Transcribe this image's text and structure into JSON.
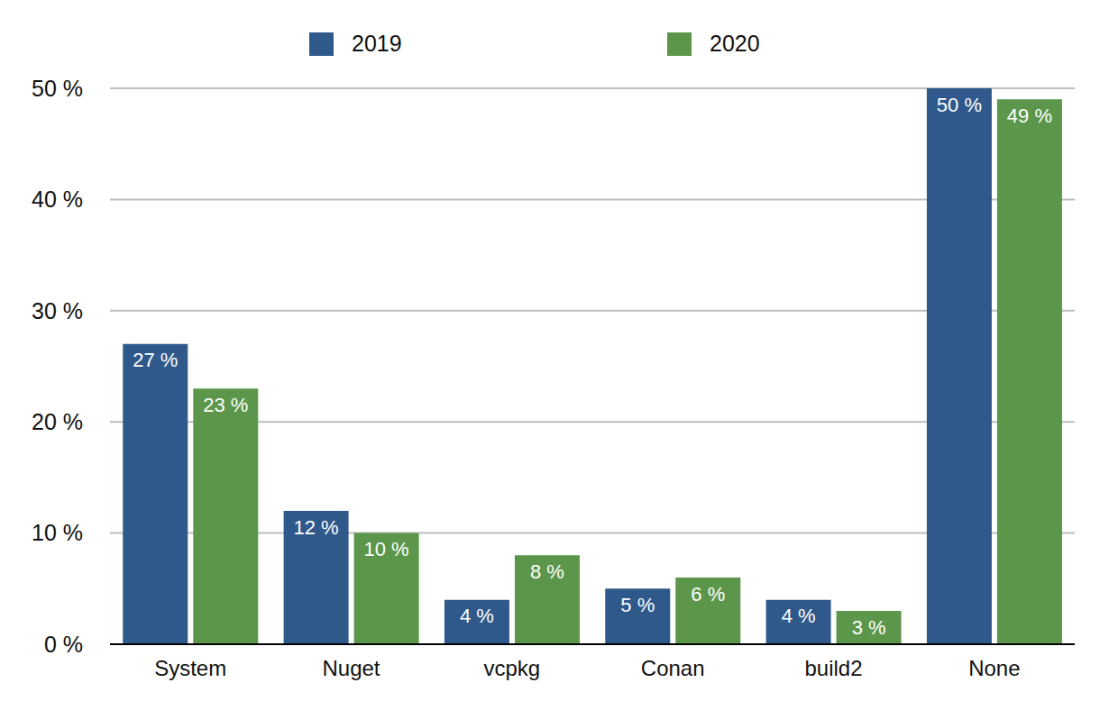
{
  "chart_data": {
    "type": "bar",
    "categories": [
      "System",
      "Nuget",
      "vcpkg",
      "Conan",
      "build2",
      "None"
    ],
    "series": [
      {
        "name": "2019",
        "color": "#30598b",
        "values": [
          27,
          12,
          4,
          5,
          4,
          50
        ],
        "value_labels": [
          "27 %",
          "12 %",
          "4 %",
          "5 %",
          "4 %",
          "50 %"
        ]
      },
      {
        "name": "2020",
        "color": "#5b964b",
        "values": [
          23,
          10,
          8,
          6,
          3,
          49
        ],
        "value_labels": [
          "23 %",
          "10 %",
          "8 %",
          "6 %",
          "3 %",
          "49 %"
        ]
      }
    ],
    "ylim": [
      0,
      50
    ],
    "yticks": [
      {
        "value": 0,
        "label": "0 %"
      },
      {
        "value": 10,
        "label": "10 %"
      },
      {
        "value": 20,
        "label": "20 %"
      },
      {
        "value": 30,
        "label": "30 %"
      },
      {
        "value": 40,
        "label": "40 %"
      },
      {
        "value": 50,
        "label": "50 %"
      }
    ],
    "grid": true,
    "legend": "top",
    "data_labels": true
  }
}
